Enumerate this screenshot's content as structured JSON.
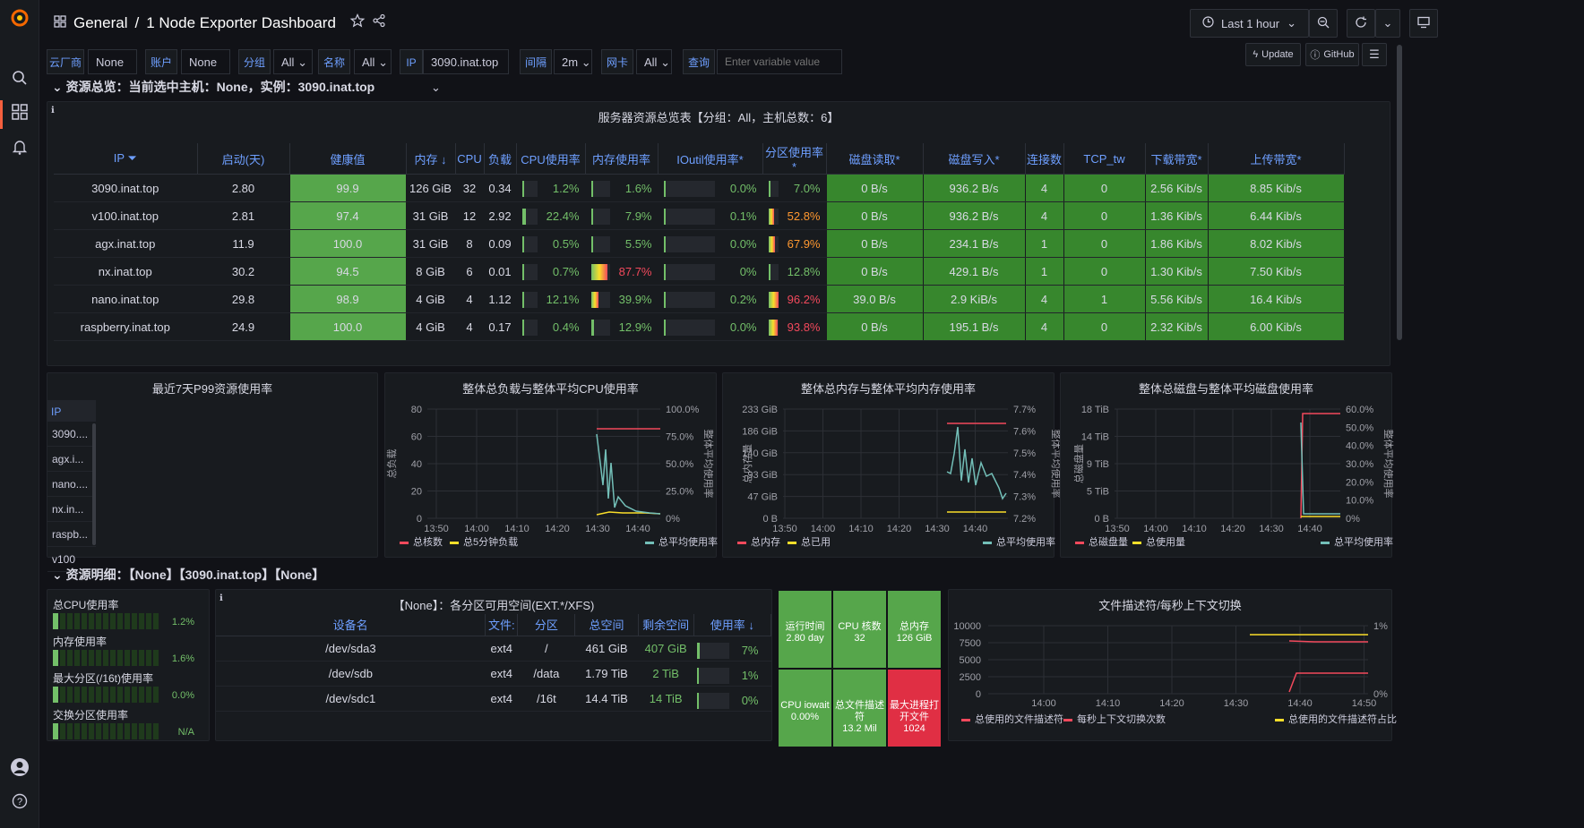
{
  "nav": {
    "breadcrumb_folder": "General",
    "breadcrumb_sep": "/",
    "dashboard_title": "1 Node Exporter Dashboard",
    "time_range": "Last 1 hour"
  },
  "variables": [
    {
      "label": "云厂商",
      "value": "None"
    },
    {
      "label": "账户",
      "value": "None"
    },
    {
      "label": "分组",
      "value": "All"
    },
    {
      "label": "名称",
      "value": "All"
    },
    {
      "label": "IP",
      "value": "3090.inat.top"
    },
    {
      "label": "间隔",
      "value": "2m"
    },
    {
      "label": "网卡",
      "value": "All"
    },
    {
      "label": "查询",
      "placeholder": "Enter variable value"
    }
  ],
  "links": {
    "update": "Update",
    "github": "GitHub"
  },
  "row1": {
    "title": "资源总览：当前选中主机：None，实例：3090.inat.top"
  },
  "overview": {
    "title": "服务器资源总览表【分组：All，主机总数：6】",
    "columns": [
      "IP",
      "启动(天)",
      "健康值",
      "内存",
      "CPU",
      "负载",
      "CPU使用率",
      "内存使用率",
      "IOutil使用率*",
      "分区使用率*",
      "磁盘读取*",
      "磁盘写入*",
      "连接数",
      "TCP_tw",
      "下载带宽*",
      "上传带宽*"
    ],
    "rows": [
      {
        "ip": "3090.inat.top",
        "uptime": "2.80",
        "health": "99.9",
        "mem": "126 GiB",
        "cpu": "32",
        "load": "0.34",
        "cpu_pct": "1.2%",
        "cpu_frac": 0.012,
        "mem_pct": "1.6%",
        "mem_frac": 0.016,
        "io_pct": "0.0%",
        "io_frac": 0,
        "part_pct": "7.0%",
        "part_frac": 0.07,
        "disk_r": "0 B/s",
        "disk_w": "936.2 B/s",
        "conn": "4",
        "tcptw": "0",
        "down": "2.56 Kib/s",
        "up": "8.85 Kib/s"
      },
      {
        "ip": "v100.inat.top",
        "uptime": "2.81",
        "health": "97.4",
        "mem": "31 GiB",
        "cpu": "12",
        "load": "2.92",
        "cpu_pct": "22.4%",
        "cpu_frac": 0.224,
        "mem_pct": "7.9%",
        "mem_frac": 0.079,
        "io_pct": "0.1%",
        "io_frac": 0.001,
        "part_pct": "52.8%",
        "part_frac": 0.528,
        "disk_r": "0 B/s",
        "disk_w": "936.2 B/s",
        "conn": "4",
        "tcptw": "0",
        "down": "1.36 Kib/s",
        "up": "6.44 Kib/s"
      },
      {
        "ip": "agx.inat.top",
        "uptime": "11.9",
        "health": "100.0",
        "mem": "31 GiB",
        "cpu": "8",
        "load": "0.09",
        "cpu_pct": "0.5%",
        "cpu_frac": 0.005,
        "mem_pct": "5.5%",
        "mem_frac": 0.055,
        "io_pct": "0.0%",
        "io_frac": 0,
        "part_pct": "67.9%",
        "part_frac": 0.679,
        "disk_r": "0 B/s",
        "disk_w": "234.1 B/s",
        "conn": "1",
        "tcptw": "0",
        "down": "1.86 Kib/s",
        "up": "8.02 Kib/s"
      },
      {
        "ip": "nx.inat.top",
        "uptime": "30.2",
        "health": "94.5",
        "mem": "8 GiB",
        "cpu": "6",
        "load": "0.01",
        "cpu_pct": "0.7%",
        "cpu_frac": 0.007,
        "mem_pct": "87.7%",
        "mem_frac": 0.877,
        "io_pct": "0%",
        "io_frac": 0,
        "part_pct": "12.8%",
        "part_frac": 0.128,
        "disk_r": "0 B/s",
        "disk_w": "429.1 B/s",
        "conn": "1",
        "tcptw": "0",
        "down": "1.30 Kib/s",
        "up": "7.50 Kib/s"
      },
      {
        "ip": "nano.inat.top",
        "uptime": "29.8",
        "health": "98.9",
        "mem": "4 GiB",
        "cpu": "4",
        "load": "1.12",
        "cpu_pct": "12.1%",
        "cpu_frac": 0.121,
        "mem_pct": "39.9%",
        "mem_frac": 0.399,
        "io_pct": "0.2%",
        "io_frac": 0.002,
        "part_pct": "96.2%",
        "part_frac": 0.962,
        "disk_r": "39.0 B/s",
        "disk_w": "2.9 KiB/s",
        "conn": "4",
        "tcptw": "1",
        "down": "5.56 Kib/s",
        "up": "16.4 Kib/s"
      },
      {
        "ip": "raspberry.inat.top",
        "uptime": "24.9",
        "health": "100.0",
        "mem": "4 GiB",
        "cpu": "4",
        "load": "0.17",
        "cpu_pct": "0.4%",
        "cpu_frac": 0.004,
        "mem_pct": "12.9%",
        "mem_frac": 0.129,
        "io_pct": "0.0%",
        "io_frac": 0,
        "part_pct": "93.8%",
        "part_frac": 0.938,
        "disk_r": "0 B/s",
        "disk_w": "195.1 B/s",
        "conn": "4",
        "tcptw": "0",
        "down": "2.32 Kib/s",
        "up": "6.00 Kib/s"
      }
    ]
  },
  "p99": {
    "title": "最近7天P99资源使用率",
    "header": "IP",
    "items": [
      "3090....",
      "agx.i...",
      "nano....",
      "nx.in...",
      "raspb...",
      "v100"
    ]
  },
  "chart_data": [
    {
      "type": "line",
      "title": "整体总负载与整体平均CPU使用率",
      "x": [
        "13:50",
        "14:00",
        "14:10",
        "14:20",
        "14:30",
        "14:40"
      ],
      "ylabel": "总负载",
      "y2label": "整体平均使用率",
      "yticks": [
        "0",
        "20",
        "40",
        "60",
        "80"
      ],
      "y2ticks": [
        "0%",
        "25.0%",
        "50.0%",
        "75.0%",
        "100.0%"
      ],
      "series": [
        {
          "name": "总核数",
          "color": "#f2495c"
        },
        {
          "name": "总5分钟负载",
          "color": "#fade2a"
        },
        {
          "name": "总平均使用率",
          "color": "#73bfb8"
        }
      ]
    },
    {
      "type": "line",
      "title": "整体总内存与整体平均内存使用率",
      "x": [
        "13:50",
        "14:00",
        "14:10",
        "14:20",
        "14:30",
        "14:40"
      ],
      "ylabel": "总内存量",
      "y2label": "整体平均使用率",
      "yticks": [
        "0 B",
        "47 GiB",
        "93 GiB",
        "140 GiB",
        "186 GiB",
        "233 GiB"
      ],
      "y2ticks": [
        "7.2%",
        "7.3%",
        "7.4%",
        "7.5%",
        "7.6%",
        "7.7%"
      ],
      "series": [
        {
          "name": "总内存",
          "color": "#f2495c"
        },
        {
          "name": "总已用",
          "color": "#fade2a"
        },
        {
          "name": "总平均使用率",
          "color": "#73bfb8"
        }
      ]
    },
    {
      "type": "line",
      "title": "整体总磁盘与整体平均磁盘使用率",
      "x": [
        "13:50",
        "14:00",
        "14:10",
        "14:20",
        "14:30",
        "14:40"
      ],
      "ylabel": "总磁盘量",
      "y2label": "整体平均使用率",
      "yticks": [
        "0 B",
        "5 TiB",
        "9 TiB",
        "14 TiB",
        "18 TiB"
      ],
      "y2ticks": [
        "0%",
        "10.0%",
        "20.0%",
        "30.0%",
        "40.0%",
        "50.0%",
        "60.0%"
      ],
      "series": [
        {
          "name": "总磁盘量",
          "color": "#f2495c"
        },
        {
          "name": "总使用量",
          "color": "#fade2a"
        },
        {
          "name": "总平均使用率",
          "color": "#73bfb8"
        }
      ]
    },
    {
      "type": "line",
      "title": "文件描述符/每秒上下文切换",
      "x": [
        "14:00",
        "14:10",
        "14:20",
        "14:30",
        "14:40",
        "14:50"
      ],
      "yticks": [
        "0",
        "2500",
        "5000",
        "7500",
        "10000"
      ],
      "y2ticks": [
        "0%",
        "1%"
      ],
      "series": [
        {
          "name": "总使用的文件描述符",
          "color": "#f2495c"
        },
        {
          "name": "每秒上下文切换次数",
          "color": "#f2495c"
        },
        {
          "name": "总使用的文件描述符占比",
          "color": "#fade2a"
        }
      ]
    }
  ],
  "row2": {
    "title": "资源明细：【None】【3090.inat.top】【None】"
  },
  "gauges": {
    "cpu": {
      "label": "总CPU使用率",
      "value": "1.2%"
    },
    "mem": {
      "label": "内存使用率",
      "value": "1.6%"
    },
    "part": {
      "label": "最大分区(/16t)使用率",
      "value": "0.0%"
    },
    "swap": {
      "label": "交换分区使用率",
      "value": "N/A"
    }
  },
  "partitions": {
    "title": "【None】：各分区可用空间(EXT.*/XFS)",
    "columns": [
      "设备名",
      "文件:",
      "分区",
      "总空间",
      "剩余空间",
      "使用率"
    ],
    "rows": [
      {
        "dev": "/dev/sda3",
        "fs": "ext4",
        "mp": "/",
        "total": "461 GiB",
        "free": "407 GiB",
        "use": "7%",
        "frac": 0.07
      },
      {
        "dev": "/dev/sdb",
        "fs": "ext4",
        "mp": "/data",
        "total": "1.79 TiB",
        "free": "2 TiB",
        "use": "1%",
        "frac": 0.01
      },
      {
        "dev": "/dev/sdc1",
        "fs": "ext4",
        "mp": "/16t",
        "total": "14.4 TiB",
        "free": "14 TiB",
        "use": "0%",
        "frac": 0.0
      }
    ]
  },
  "stats": [
    {
      "label": "运行时间",
      "value": "2.80 day",
      "color": "#56a64b"
    },
    {
      "label": "CPU 核数",
      "value": "32",
      "color": "#56a64b"
    },
    {
      "label": "总内存",
      "value": "126 GiB",
      "color": "#56a64b"
    },
    {
      "label": "CPU iowait",
      "value": "0.00%",
      "color": "#56a64b"
    },
    {
      "label": "总文件描述符",
      "value": "13.2 Mil",
      "color": "#56a64b"
    },
    {
      "label": "最大进程打开文件",
      "value": "1024",
      "color": "#e02f44"
    }
  ]
}
